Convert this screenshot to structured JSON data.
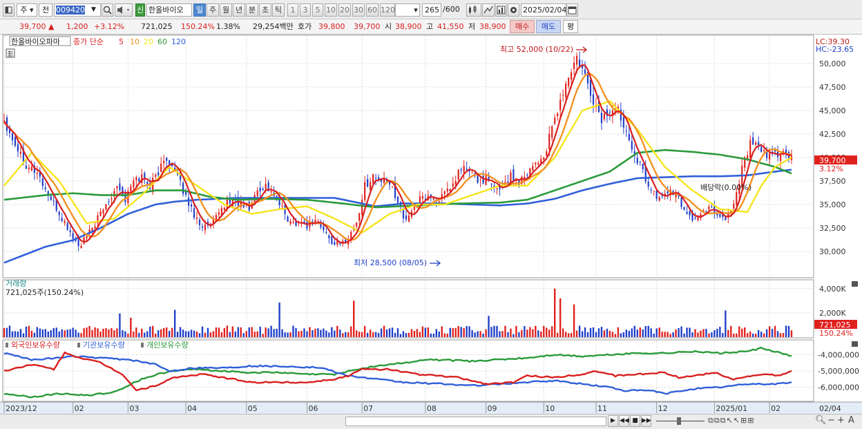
{
  "toolbar": {
    "market": "주",
    "prev": "전",
    "code": "009420",
    "market_tag": "신",
    "name": "한올바이오",
    "periods": [
      {
        "label": "일",
        "selected": true
      },
      {
        "label": "주",
        "selected": false
      },
      {
        "label": "월",
        "selected": false
      },
      {
        "label": "년",
        "selected": false
      },
      {
        "label": "분",
        "selected": false
      },
      {
        "label": "초",
        "selected": false
      },
      {
        "label": "틱",
        "selected": false
      }
    ],
    "intervals": [
      "1",
      "3",
      "5",
      "10",
      "20",
      "30",
      "60",
      "120"
    ],
    "count": "265",
    "count_total": "/600",
    "date": "2025/02/04"
  },
  "quote": {
    "price": "39,700",
    "change": "1,200",
    "change_pct": "+3.12%",
    "volume": "721,025",
    "volume_ratio": "150.24%",
    "turnover_pct": "1.38%",
    "amount": "29,254백만",
    "ask_label": "호가",
    "ask1": "39,800",
    "ask2": "39,700",
    "open_label": "시",
    "open": "38,900",
    "high_label": "고",
    "high": "41,550",
    "low_label": "저",
    "low": "38,900",
    "buy_label": "매수",
    "sell_label": "매도",
    "eval_label": "평"
  },
  "chart_data": {
    "type": "line",
    "price_panel": {
      "stock_label": "한올바이오파마",
      "ma_label": "종가 단순",
      "ma_periods": [
        {
          "label": "5",
          "color": "#d81f1f"
        },
        {
          "label": "10",
          "color": "#f39222"
        },
        {
          "label": "20",
          "color": "#f5e51c"
        },
        {
          "label": "60",
          "color": "#2a9a3a"
        },
        {
          "label": "120",
          "color": "#2f5fd8"
        }
      ],
      "y_ticks": [
        "50,000",
        "47,500",
        "45,000",
        "42,500",
        "40,000",
        "37,500",
        "35,000",
        "32,500",
        "30,000"
      ],
      "ylim": [
        27500,
        52500
      ],
      "lc_label": "LC:39.30",
      "hc_label": "HC:-23.65",
      "last_price_tag": "39,700",
      "last_pct_tag": "3.12%",
      "annotations": {
        "high": "최고 52,000 (10/22)",
        "low": "최저 28,500 (08/05)",
        "dividend": "배당락(0.00%)"
      },
      "close_anchors": [
        [
          0,
          44000
        ],
        [
          4,
          41500
        ],
        [
          8,
          39300
        ],
        [
          12,
          38400
        ],
        [
          16,
          36000
        ],
        [
          20,
          34000
        ],
        [
          24,
          32000
        ],
        [
          27,
          30500
        ],
        [
          30,
          31500
        ],
        [
          34,
          33500
        ],
        [
          38,
          35500
        ],
        [
          41,
          37200
        ],
        [
          44,
          35500
        ],
        [
          47,
          37500
        ],
        [
          50,
          38000
        ],
        [
          53,
          37000
        ],
        [
          56,
          38500
        ],
        [
          59,
          40000
        ],
        [
          62,
          38500
        ],
        [
          65,
          36500
        ],
        [
          68,
          34500
        ],
        [
          71,
          33000
        ],
        [
          74,
          32500
        ],
        [
          77,
          33500
        ],
        [
          80,
          35000
        ],
        [
          83,
          35500
        ],
        [
          86,
          35000
        ],
        [
          89,
          34500
        ],
        [
          92,
          36500
        ],
        [
          95,
          37000
        ],
        [
          98,
          36000
        ],
        [
          101,
          34500
        ],
        [
          104,
          33000
        ],
        [
          107,
          33200
        ],
        [
          110,
          32800
        ],
        [
          113,
          33500
        ],
        [
          116,
          32200
        ],
        [
          119,
          31000
        ],
        [
          122,
          30700
        ],
        [
          125,
          31500
        ],
        [
          128,
          33000
        ],
        [
          131,
          37000
        ],
        [
          134,
          38000
        ],
        [
          137,
          37500
        ],
        [
          140,
          37200
        ],
        [
          143,
          35500
        ],
        [
          146,
          33000
        ],
        [
          148,
          34500
        ],
        [
          151,
          35500
        ],
        [
          154,
          36000
        ],
        [
          157,
          35500
        ],
        [
          160,
          36000
        ],
        [
          163,
          37000
        ],
        [
          166,
          39000
        ],
        [
          169,
          38500
        ],
        [
          172,
          37500
        ],
        [
          175,
          37800
        ],
        [
          178,
          36500
        ],
        [
          181,
          37000
        ],
        [
          184,
          38000
        ],
        [
          187,
          37500
        ],
        [
          190,
          38500
        ],
        [
          193,
          39500
        ],
        [
          196,
          40000
        ],
        [
          199,
          43000
        ],
        [
          202,
          46000
        ],
        [
          205,
          48500
        ],
        [
          208,
          50500
        ],
        [
          211,
          48500
        ],
        [
          214,
          46000
        ],
        [
          217,
          44000
        ],
        [
          220,
          45000
        ],
        [
          223,
          45000
        ],
        [
          226,
          43000
        ],
        [
          229,
          40500
        ],
        [
          232,
          38500
        ],
        [
          235,
          36500
        ],
        [
          238,
          35500
        ],
        [
          241,
          36500
        ],
        [
          244,
          36000
        ],
        [
          247,
          34500
        ],
        [
          250,
          33500
        ],
        [
          253,
          33800
        ],
        [
          256,
          35000
        ],
        [
          259,
          34000
        ],
        [
          262,
          33500
        ],
        [
          265,
          35000
        ],
        [
          268,
          39000
        ],
        [
          271,
          41500
        ],
        [
          274,
          41000
        ],
        [
          277,
          40000
        ],
        [
          280,
          40500
        ],
        [
          283,
          40500
        ],
        [
          286,
          39700
        ]
      ],
      "ma20_anchors": [
        [
          0,
          37000
        ],
        [
          10,
          40500
        ],
        [
          20,
          37500
        ],
        [
          30,
          33000
        ],
        [
          40,
          33500
        ],
        [
          50,
          36000
        ],
        [
          60,
          39000
        ],
        [
          70,
          37000
        ],
        [
          80,
          35000
        ],
        [
          90,
          34000
        ],
        [
          100,
          34500
        ],
        [
          110,
          34800
        ],
        [
          120,
          33500
        ],
        [
          130,
          32000
        ],
        [
          140,
          34000
        ],
        [
          150,
          35000
        ],
        [
          160,
          35000
        ],
        [
          170,
          36000
        ],
        [
          180,
          37000
        ],
        [
          190,
          37000
        ],
        [
          200,
          40000
        ],
        [
          210,
          45000
        ],
        [
          220,
          46000
        ],
        [
          230,
          43000
        ],
        [
          240,
          39000
        ],
        [
          250,
          36500
        ],
        [
          260,
          34500
        ],
        [
          270,
          34200
        ],
        [
          275,
          37000
        ],
        [
          280,
          39000
        ],
        [
          286,
          40000
        ]
      ],
      "ma60_anchors": [
        [
          0,
          35500
        ],
        [
          15,
          36000
        ],
        [
          25,
          36200
        ],
        [
          35,
          36000
        ],
        [
          45,
          36000
        ],
        [
          55,
          36500
        ],
        [
          65,
          36500
        ],
        [
          75,
          35800
        ],
        [
          85,
          35500
        ],
        [
          95,
          35600
        ],
        [
          110,
          35500
        ],
        [
          120,
          35200
        ],
        [
          135,
          34700
        ],
        [
          150,
          34900
        ],
        [
          165,
          35100
        ],
        [
          180,
          35200
        ],
        [
          190,
          35500
        ],
        [
          200,
          36500
        ],
        [
          210,
          37500
        ],
        [
          220,
          38500
        ],
        [
          230,
          40500
        ],
        [
          240,
          40800
        ],
        [
          250,
          40600
        ],
        [
          260,
          40300
        ],
        [
          270,
          39800
        ],
        [
          280,
          39000
        ],
        [
          286,
          38300
        ]
      ],
      "ma120_anchors": [
        [
          0,
          28800
        ],
        [
          15,
          30500
        ],
        [
          25,
          31200
        ],
        [
          35,
          32500
        ],
        [
          45,
          34000
        ],
        [
          55,
          35000
        ],
        [
          62,
          35300
        ],
        [
          70,
          35500
        ],
        [
          85,
          35700
        ],
        [
          100,
          35700
        ],
        [
          120,
          35700
        ],
        [
          135,
          34800
        ],
        [
          145,
          35100
        ],
        [
          160,
          35100
        ],
        [
          180,
          34900
        ],
        [
          190,
          35100
        ],
        [
          200,
          35600
        ],
        [
          210,
          36500
        ],
        [
          220,
          37200
        ],
        [
          230,
          37800
        ],
        [
          240,
          37900
        ],
        [
          250,
          38000
        ],
        [
          260,
          38000
        ],
        [
          270,
          38100
        ],
        [
          280,
          38500
        ],
        [
          286,
          38700
        ]
      ]
    },
    "volume_panel": {
      "title": "거래량",
      "value_label": "721,025주(150.24%)",
      "y_ticks": [
        "4,000K",
        "2,000K"
      ],
      "ylim": [
        0,
        4500000
      ],
      "last_tag": "721,025",
      "last_pct_tag": "150.24%",
      "spikes": [
        [
          42,
          1950000
        ],
        [
          46,
          1600000
        ],
        [
          62,
          2250000
        ],
        [
          100,
          2850000
        ],
        [
          127,
          3000000
        ],
        [
          176,
          1750000
        ],
        [
          200,
          4000000
        ],
        [
          202,
          3200000
        ],
        [
          207,
          2700000
        ],
        [
          262,
          2200000
        ]
      ]
    },
    "holding_panel": {
      "series_labels": [
        {
          "label": "외국인보유수량",
          "color": "#d81f1f"
        },
        {
          "label": "기관보유수량",
          "color": "#2f5fd8"
        },
        {
          "label": "개인보유수량",
          "color": "#2a9a3a"
        }
      ],
      "y_ticks": [
        "-4,000,000",
        "-5,000,000",
        "-6,000,000"
      ],
      "ylim": [
        -6700000,
        -3300000
      ],
      "foreign_anchors": [
        [
          0,
          -5000000
        ],
        [
          10,
          -4600000
        ],
        [
          18,
          -4900000
        ],
        [
          22,
          -3900000
        ],
        [
          28,
          -4200000
        ],
        [
          35,
          -4500000
        ],
        [
          43,
          -5200000
        ],
        [
          48,
          -6200000
        ],
        [
          55,
          -5900000
        ],
        [
          62,
          -5400000
        ],
        [
          72,
          -5200000
        ],
        [
          90,
          -5700000
        ],
        [
          100,
          -5700000
        ],
        [
          110,
          -5700000
        ],
        [
          120,
          -5500000
        ],
        [
          125,
          -5300000
        ],
        [
          130,
          -4900000
        ],
        [
          140,
          -4900000
        ],
        [
          150,
          -5200000
        ],
        [
          165,
          -5400000
        ],
        [
          175,
          -5800000
        ],
        [
          185,
          -5700000
        ],
        [
          190,
          -5300000
        ],
        [
          200,
          -5400000
        ],
        [
          210,
          -5200000
        ],
        [
          215,
          -5000000
        ],
        [
          222,
          -5300000
        ],
        [
          230,
          -5200000
        ],
        [
          240,
          -5100000
        ],
        [
          245,
          -5400000
        ],
        [
          250,
          -5300000
        ],
        [
          258,
          -5100000
        ],
        [
          265,
          -5500000
        ],
        [
          275,
          -5200000
        ],
        [
          282,
          -5300000
        ],
        [
          286,
          -5000000
        ]
      ],
      "institution_anchors": [
        [
          0,
          -3900000
        ],
        [
          10,
          -4300000
        ],
        [
          20,
          -4200000
        ],
        [
          25,
          -4100000
        ],
        [
          35,
          -4200000
        ],
        [
          45,
          -4300000
        ],
        [
          55,
          -4600000
        ],
        [
          60,
          -5000000
        ],
        [
          70,
          -4800000
        ],
        [
          80,
          -4800000
        ],
        [
          90,
          -4700000
        ],
        [
          100,
          -4700000
        ],
        [
          115,
          -4800000
        ],
        [
          125,
          -5300000
        ],
        [
          135,
          -5500000
        ],
        [
          145,
          -5700000
        ],
        [
          160,
          -5800000
        ],
        [
          170,
          -5900000
        ],
        [
          180,
          -5800000
        ],
        [
          190,
          -5700000
        ],
        [
          200,
          -5600000
        ],
        [
          210,
          -5800000
        ],
        [
          220,
          -6000000
        ],
        [
          225,
          -6200000
        ],
        [
          235,
          -6200000
        ],
        [
          240,
          -6400000
        ],
        [
          250,
          -6100000
        ],
        [
          260,
          -6000000
        ],
        [
          270,
          -5800000
        ],
        [
          280,
          -5800000
        ],
        [
          286,
          -5700000
        ]
      ],
      "individual_anchors": [
        [
          0,
          -6400000
        ],
        [
          10,
          -6600000
        ],
        [
          20,
          -6400000
        ],
        [
          30,
          -6500000
        ],
        [
          40,
          -6300000
        ],
        [
          50,
          -5500000
        ],
        [
          60,
          -5000000
        ],
        [
          70,
          -4900000
        ],
        [
          80,
          -5000000
        ],
        [
          90,
          -5100000
        ],
        [
          100,
          -5100000
        ],
        [
          110,
          -5200000
        ],
        [
          120,
          -5200000
        ],
        [
          125,
          -5000000
        ],
        [
          135,
          -4700000
        ],
        [
          145,
          -4500000
        ],
        [
          155,
          -4300000
        ],
        [
          170,
          -4400000
        ],
        [
          180,
          -4300000
        ],
        [
          190,
          -4200000
        ],
        [
          200,
          -4000000
        ],
        [
          210,
          -4100000
        ],
        [
          220,
          -4000000
        ],
        [
          230,
          -3900000
        ],
        [
          240,
          -3900000
        ],
        [
          250,
          -3800000
        ],
        [
          260,
          -3900000
        ],
        [
          270,
          -3800000
        ],
        [
          275,
          -3600000
        ],
        [
          282,
          -3900000
        ],
        [
          286,
          -4100000
        ]
      ]
    },
    "x_labels": [
      {
        "label": "2023/12",
        "i": 0
      },
      {
        "label": "02",
        "i": 25
      },
      {
        "label": "03",
        "i": 45
      },
      {
        "label": "04",
        "i": 66
      },
      {
        "label": "05",
        "i": 88
      },
      {
        "label": "06",
        "i": 110
      },
      {
        "label": "07",
        "i": 130
      },
      {
        "label": "08",
        "i": 153
      },
      {
        "label": "09",
        "i": 175
      },
      {
        "label": "10",
        "i": 196
      },
      {
        "label": "11",
        "i": 215
      },
      {
        "label": "12",
        "i": 237
      },
      {
        "label": "2025/01",
        "i": 258
      },
      {
        "label": "02",
        "i": 278
      }
    ],
    "right_date_label": "02/04",
    "n_bars": 287
  }
}
